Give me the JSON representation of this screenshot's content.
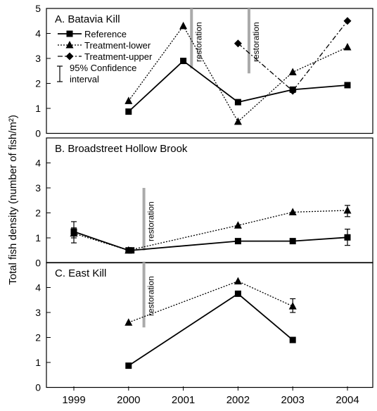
{
  "chart_data": {
    "type": "line",
    "ylabel": "Total fish density (number of fish/m²)",
    "x": [
      "1999",
      "2000",
      "2001",
      "2002",
      "2003",
      "2004"
    ],
    "ylim": [
      0,
      5
    ],
    "yticks": [
      "0",
      "1",
      "2",
      "3",
      "4",
      "5"
    ],
    "legend": {
      "placement": "top-left of panel A",
      "entries": [
        "Reference",
        "Treatment-lower",
        "Treatment-upper"
      ],
      "ci_label_line1": "95% Confidence",
      "ci_label_line2": "interval"
    },
    "colors": {
      "line": "#000000",
      "restoration_bar": "#aaaaaa"
    },
    "panels": [
      {
        "title": "A. Batavia Kill",
        "ylim": [
          0,
          5
        ],
        "yticks": [
          "0",
          "1",
          "2",
          "3",
          "4",
          "5"
        ],
        "restorations": [
          {
            "label": "restoration",
            "x": 2001.15,
            "y_range": [
              2.6,
              5.0
            ]
          },
          {
            "label": "restoration",
            "x": 2002.2,
            "y_range": [
              2.4,
              5.0
            ]
          }
        ],
        "series": [
          {
            "name": "Reference",
            "marker": "square",
            "dash": "solid",
            "x": [
              2000,
              2001,
              2002,
              2003,
              2004
            ],
            "values": [
              0.87,
              2.9,
              1.25,
              1.75,
              1.93
            ]
          },
          {
            "name": "Treatment-lower",
            "marker": "triangle",
            "dash": "dotted",
            "x": [
              2000,
              2001,
              2002,
              2003,
              2004
            ],
            "values": [
              1.3,
              4.3,
              0.47,
              2.45,
              3.45
            ]
          },
          {
            "name": "Treatment-upper",
            "marker": "diamond",
            "dash": "dashdot",
            "x": [
              2002,
              2003,
              2004
            ],
            "values": [
              3.6,
              1.7,
              4.5
            ]
          }
        ]
      },
      {
        "title": "B. Broadstreet Hollow Brook",
        "ylim": [
          0,
          5
        ],
        "yticks": [
          "0",
          "1",
          "2",
          "3",
          "4"
        ],
        "restorations": [
          {
            "label": "restoration",
            "x": 2000.28,
            "y_range": [
              0.5,
              3.0
            ]
          }
        ],
        "series": [
          {
            "name": "Reference",
            "marker": "square",
            "dash": "solid",
            "x": [
              1999,
              2000,
              2000.05,
              2002,
              2003,
              2004
            ],
            "values": [
              1.25,
              0.5,
              0.5,
              0.87,
              0.87,
              1.02
            ],
            "errors": [
              {
                "i": 0,
                "low": 0.8,
                "high": 1.65
              },
              {
                "i": 5,
                "low": 0.7,
                "high": 1.35
              }
            ]
          },
          {
            "name": "Treatment-lower",
            "marker": "triangle",
            "dash": "dotted",
            "x": [
              1999,
              2000,
              2002,
              2003,
              2004
            ],
            "values": [
              1.18,
              0.5,
              1.5,
              2.03,
              2.1
            ],
            "errors": [
              {
                "i": 0,
                "low": 1.0,
                "high": 1.4
              },
              {
                "i": 4,
                "low": 1.85,
                "high": 2.3
              }
            ]
          }
        ]
      },
      {
        "title": "C. East Kill",
        "ylim": [
          0,
          5
        ],
        "yticks": [
          "0",
          "1",
          "2",
          "3",
          "4"
        ],
        "restorations": [
          {
            "label": "restoration",
            "x": 2000.28,
            "y_range": [
              2.4,
              5.0
            ]
          }
        ],
        "series": [
          {
            "name": "Reference",
            "marker": "square",
            "dash": "solid",
            "x": [
              2000,
              2002,
              2003
            ],
            "values": [
              0.87,
              3.75,
              1.9
            ]
          },
          {
            "name": "Treatment-lower",
            "marker": "triangle",
            "dash": "dotted",
            "x": [
              2000,
              2002,
              2003
            ],
            "values": [
              2.6,
              4.25,
              3.25
            ],
            "errors": [
              {
                "i": 2,
                "low": 3.0,
                "high": 3.55
              }
            ]
          }
        ]
      }
    ]
  }
}
